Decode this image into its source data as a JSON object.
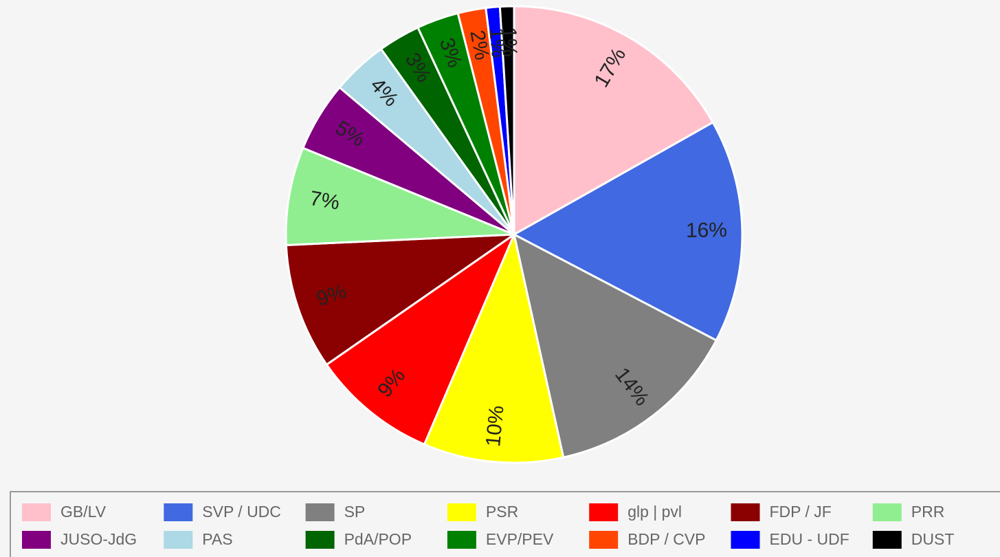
{
  "chart_data": {
    "type": "pie",
    "categories": [
      "GB/LV",
      "SVP / UDC",
      "SP",
      "PSR",
      "glp | pvl",
      "FDP / JF",
      "PRR",
      "JUSO-JdG",
      "PAS",
      "PdA/POP",
      "EVP/PEV",
      "BDP / CVP",
      "EDU - UDF",
      "DUST"
    ],
    "values": [
      17,
      16,
      14,
      10,
      9,
      9,
      7,
      5,
      4,
      3,
      3,
      2,
      1,
      1
    ],
    "value_labels": [
      "17%",
      "16%",
      "14%",
      "10%",
      "9%",
      "9%",
      "7%",
      "5%",
      "4%",
      "3%",
      "3%",
      "2%",
      "1%",
      "1%"
    ],
    "colors": [
      "#ffc0cb",
      "#4169e1",
      "#808080",
      "#ffff00",
      "#ff0000",
      "#8b0000",
      "#90ee90",
      "#800080",
      "#add8e6",
      "#006400",
      "#008000",
      "#ff4500",
      "#0000ff",
      "#000000"
    ],
    "legend": "bottom"
  }
}
